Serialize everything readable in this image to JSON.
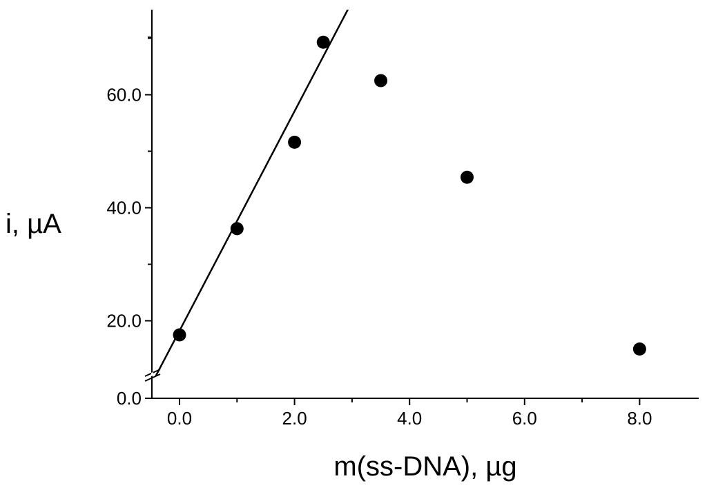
{
  "chart_data": {
    "type": "scatter",
    "xlabel": "m(ss-DNA), µg",
    "ylabel": "i, µA",
    "xlim": [
      -0.5,
      9.0
    ],
    "ylim_visible_segment": [
      12.0,
      75.0
    ],
    "ylim_broken_bottom": 0.0,
    "y_axis_break": true,
    "grid": false,
    "legend": "none",
    "x_ticks": [
      0.0,
      2.0,
      4.0,
      6.0,
      8.0
    ],
    "x_tick_labels": [
      "0.0",
      "2.0",
      "4.0",
      "6.0",
      "8.0"
    ],
    "y_ticks": [
      20.0,
      40.0,
      60.0
    ],
    "y_tick_labels": [
      "20.0",
      "40.0",
      "60.0"
    ],
    "y_bottom_tick_label": "0.0",
    "series": [
      {
        "type": "scatter",
        "x": [
          0.0,
          1.0,
          2.0,
          2.5,
          3.5,
          5.0,
          8.0
        ],
        "y": [
          17.5,
          36.3,
          51.6,
          69.3,
          62.5,
          45.4,
          15.0
        ],
        "color": "#000000"
      },
      {
        "type": "line",
        "x": [
          -0.45,
          3.0
        ],
        "y": [
          9.5,
          76.5
        ],
        "color": "#000000"
      }
    ]
  }
}
